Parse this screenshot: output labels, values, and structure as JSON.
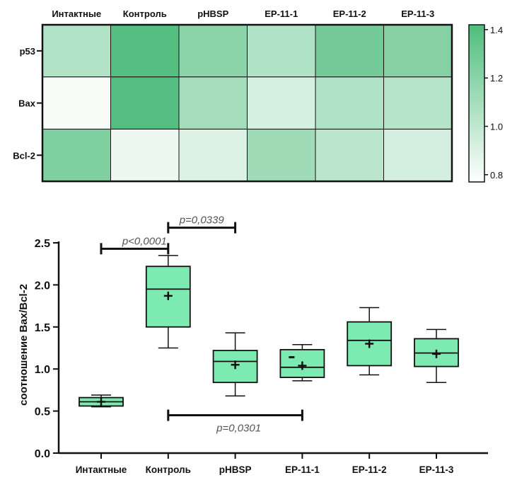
{
  "chart_data": [
    {
      "type": "heatmap",
      "columns": [
        "Интактные",
        "Контроль",
        "pHBSP",
        "EP-11-1",
        "EP-11-2",
        "EP-11-3"
      ],
      "rows": [
        "p53",
        "Bax",
        "Bcl-2"
      ],
      "values": [
        [
          1.05,
          1.4,
          1.2,
          1.06,
          1.28,
          1.22
        ],
        [
          0.8,
          1.4,
          1.1,
          0.92,
          1.06,
          1.04
        ],
        [
          1.24,
          0.84,
          0.9,
          1.12,
          1.02,
          0.93
        ]
      ],
      "colorbar": {
        "min": 0.77,
        "max": 1.42,
        "ticks": [
          "1.4",
          "1.2",
          "1.0",
          "0.8"
        ],
        "tick_values": [
          1.4,
          1.2,
          1.0,
          0.8
        ],
        "color_low": "#ffffff",
        "color_high": "#4fbd7c"
      }
    },
    {
      "type": "box",
      "categories": [
        "Интактные",
        "Контроль",
        "pHBSP",
        "EP-11-1",
        "EP-11-2",
        "EP-11-3"
      ],
      "ylabel": "соотношение Bax/Bcl-2",
      "ylim": [
        0,
        2.5
      ],
      "yticks": [
        "0.0",
        "0.5",
        "1.0",
        "1.5",
        "2.0",
        "2.5"
      ],
      "ytick_values": [
        0,
        0.5,
        1.0,
        1.5,
        2.0,
        2.5
      ],
      "box_color": "#7deab1",
      "boxes": [
        {
          "min": 0.55,
          "q1": 0.56,
          "median": 0.61,
          "q3": 0.66,
          "max": 0.69,
          "mean": 0.61
        },
        {
          "min": 1.25,
          "q1": 1.5,
          "median": 1.95,
          "q3": 2.22,
          "max": 2.35,
          "mean": 1.87
        },
        {
          "min": 0.68,
          "q1": 0.84,
          "median": 1.09,
          "q3": 1.22,
          "max": 1.43,
          "mean": 1.05
        },
        {
          "min": 0.86,
          "q1": 0.9,
          "median": 1.02,
          "q3": 1.23,
          "max": 1.29,
          "mean": 1.04
        },
        {
          "min": 0.93,
          "q1": 1.04,
          "median": 1.34,
          "q3": 1.56,
          "max": 1.73,
          "mean": 1.3
        },
        {
          "min": 0.84,
          "q1": 1.03,
          "median": 1.19,
          "q3": 1.36,
          "max": 1.47,
          "mean": 1.18
        }
      ],
      "extra_points": [
        {
          "category": "EP-11-1",
          "y": 1.14
        }
      ],
      "annotations": [
        {
          "text": "p<0,0001",
          "from": "Интактные",
          "to": "Контроль",
          "y": 2.43
        },
        {
          "text": "p=0,0339",
          "from": "Контроль",
          "to": "pHBSP",
          "y": 2.68
        },
        {
          "text": "p=0,0301",
          "from": "Контроль",
          "to": "EP-11-1",
          "y": 0.45
        }
      ]
    }
  ]
}
